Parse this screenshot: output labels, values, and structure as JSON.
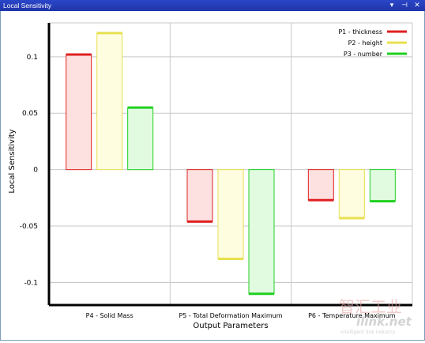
{
  "window": {
    "title": "Local Sensitivity",
    "pin_icon": "pin-icon",
    "close_icon": "close-icon",
    "menu_icon": "chevron-down-icon"
  },
  "watermark": {
    "cn": "智汇工业",
    "en": "ilink.net",
    "tag": "intelligent link industry"
  },
  "chart_data": {
    "type": "bar",
    "title": "",
    "xlabel": "Output Parameters",
    "ylabel": "Local Sensitivity",
    "ylim": [
      -0.12,
      0.13
    ],
    "yticks": [
      0.1,
      0.05,
      0,
      -0.05,
      -0.1
    ],
    "ytick_labels": [
      "0.1",
      "0.05",
      "0",
      "-0.05",
      "-0.1"
    ],
    "grid": true,
    "legend_position": "top-right",
    "categories": [
      "P4 - Solid Mass",
      "P5 - Total Deformation Maximum",
      "P6 - Temperature Maximum"
    ],
    "series": [
      {
        "name": "P1 - thickness",
        "color": "#e02020",
        "fill": "#fde0e0",
        "values": [
          0.102,
          -0.046,
          -0.027
        ]
      },
      {
        "name": "P2 - height",
        "color": "#e8e050",
        "fill": "#fefde0",
        "values": [
          0.121,
          -0.079,
          -0.043
        ]
      },
      {
        "name": "P3 - number",
        "color": "#20d020",
        "fill": "#e0fbe0",
        "values": [
          0.055,
          -0.11,
          -0.028
        ]
      }
    ]
  }
}
